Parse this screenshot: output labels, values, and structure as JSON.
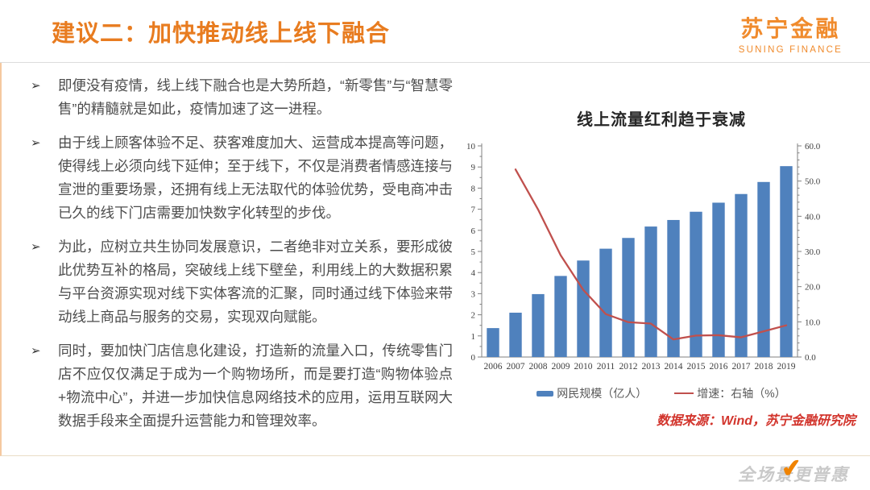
{
  "header": {
    "title": "建议二：加快推动线上线下融合",
    "logo_cn": "苏宁金融",
    "logo_en": "SUNING FINANCE"
  },
  "bullet_marker": "➢",
  "bullets": [
    "即便没有疫情，线上线下融合也是大势所趋，“新零售”与“智慧零售”的精髓就是如此，疫情加速了这一进程。",
    "由于线上顾客体验不足、获客难度加大、运营成本提高等问题，使得线上必须向线下延伸；至于线下，不仅是消费者情感连接与宣泄的重要场景，还拥有线上无法取代的体验优势，受电商冲击已久的线下门店需要加快数字化转型的步伐。",
    "为此，应树立共生协同发展意识，二者绝非对立关系，要形成彼此优势互补的格局，突破线上线下壁垒，利用线上的大数据积累与平台资源实现对线下实体客流的汇聚，同时通过线下体验来带动线上商品与服务的交易，实现双向赋能。",
    "同时，要加快门店信息化建设，打造新的流量入口，传统零售门店不应仅仅满足于成为一个购物场所，而是要打造“购物体验点+物流中心”，并进一步加快信息网络技术的应用，运用互联网大数据手段来全面提升运营能力和管理效率。"
  ],
  "chart": {
    "title": "线上流量红利趋于衰减",
    "source": "数据来源：Wind，苏宁金融研究院",
    "legend": [
      {
        "label": "网民规模（亿人）",
        "color": "#4F81BD",
        "type": "bar"
      },
      {
        "label": "增速：右轴（%）",
        "color": "#C0504D",
        "type": "line"
      }
    ]
  },
  "chart_data": {
    "type": "bar",
    "title": "线上流量红利趋于衰减",
    "categories": [
      "2006",
      "2007",
      "2008",
      "2009",
      "2010",
      "2011",
      "2012",
      "2013",
      "2014",
      "2015",
      "2016",
      "2017",
      "2018",
      "2019"
    ],
    "series": [
      {
        "name": "网民规模（亿人）",
        "type": "bar",
        "axis": "left",
        "color": "#4F81BD",
        "values": [
          1.37,
          2.1,
          2.98,
          3.84,
          4.57,
          5.13,
          5.64,
          6.18,
          6.49,
          6.88,
          7.31,
          7.72,
          8.29,
          9.04
        ]
      },
      {
        "name": "增速：右轴（%）",
        "type": "line",
        "axis": "right",
        "color": "#C0504D",
        "values": [
          null,
          53.3,
          41.9,
          28.9,
          19.1,
          12.2,
          9.9,
          9.5,
          5.0,
          6.1,
          6.2,
          5.6,
          7.3,
          9.0
        ]
      }
    ],
    "left_axis": {
      "min": 0,
      "max": 10,
      "major_step": 1,
      "minor_step": 0.5
    },
    "right_axis": {
      "min": 0,
      "max": 60,
      "major_step": 10,
      "minor_step": 2,
      "label_decimals": 1
    },
    "grid": false,
    "legend_position": "bottom",
    "axis_color": "#808080",
    "tick_label_color": "#404040"
  },
  "watermark": "全场景更普惠",
  "colors": {
    "accent_orange": "#e87c20",
    "logo_orange": "#f08b2d",
    "bar_blue": "#4F81BD",
    "line_red": "#C0504D",
    "source_red": "#d2342c"
  }
}
